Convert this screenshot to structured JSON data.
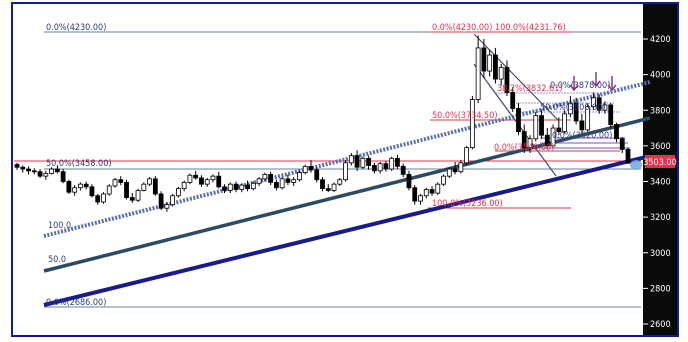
{
  "colors": {
    "frame": "#0e1f8f",
    "axis_bg": "#0a0a0a",
    "axis_text": "#ffffff",
    "fib_level": "#6a7f99",
    "fib_red": "#e8304a",
    "fib_violet": "#a78bdf",
    "fib_text_red": "#e8304a",
    "fib_text_blue": "#2d3c7a",
    "channel_mid": "#2c4a63",
    "channel_low": "#1a1a8a",
    "channel_high": "#5b6fb0",
    "candle_up": "#ffffff",
    "candle_down": "#000000",
    "price_marker": "#e8304a",
    "arrow": "#8a3a8a",
    "flag": "#4a4a6a"
  },
  "chart_data": {
    "type": "candlestick",
    "title": "",
    "xlabel": "",
    "ylabel": "",
    "ylim": [
      2570,
      4320
    ],
    "y_ticks": [
      2600,
      2800,
      3000,
      3200,
      3400,
      3600,
      3800,
      4000,
      4200
    ],
    "y_tick_labels": [
      "2600",
      "2800",
      "3000",
      "3200",
      "3400",
      "3600",
      "3800",
      "4000",
      "4200"
    ],
    "last_price": 3503.0,
    "last_price_label": "3503.00",
    "candles": [
      [
        3495,
        3505,
        3465,
        3480
      ],
      [
        3480,
        3490,
        3450,
        3470
      ],
      [
        3470,
        3485,
        3440,
        3460
      ],
      [
        3460,
        3475,
        3440,
        3455
      ],
      [
        3455,
        3470,
        3420,
        3430
      ],
      [
        3430,
        3460,
        3410,
        3445
      ],
      [
        3445,
        3480,
        3440,
        3470
      ],
      [
        3470,
        3490,
        3445,
        3455
      ],
      [
        3455,
        3470,
        3390,
        3400
      ],
      [
        3400,
        3410,
        3330,
        3340
      ],
      [
        3340,
        3380,
        3320,
        3365
      ],
      [
        3365,
        3395,
        3350,
        3385
      ],
      [
        3385,
        3400,
        3355,
        3370
      ],
      [
        3370,
        3385,
        3310,
        3320
      ],
      [
        3320,
        3330,
        3270,
        3285
      ],
      [
        3285,
        3340,
        3275,
        3330
      ],
      [
        3330,
        3385,
        3320,
        3375
      ],
      [
        3375,
        3420,
        3365,
        3410
      ],
      [
        3410,
        3430,
        3380,
        3395
      ],
      [
        3395,
        3410,
        3300,
        3310
      ],
      [
        3310,
        3335,
        3280,
        3295
      ],
      [
        3295,
        3360,
        3285,
        3350
      ],
      [
        3350,
        3395,
        3345,
        3385
      ],
      [
        3385,
        3425,
        3375,
        3415
      ],
      [
        3415,
        3430,
        3320,
        3330
      ],
      [
        3330,
        3345,
        3240,
        3250
      ],
      [
        3250,
        3285,
        3230,
        3270
      ],
      [
        3270,
        3330,
        3260,
        3320
      ],
      [
        3320,
        3370,
        3310,
        3360
      ],
      [
        3360,
        3405,
        3345,
        3395
      ],
      [
        3395,
        3445,
        3385,
        3435
      ],
      [
        3435,
        3460,
        3410,
        3420
      ],
      [
        3420,
        3435,
        3370,
        3385
      ],
      [
        3385,
        3420,
        3370,
        3410
      ],
      [
        3410,
        3440,
        3395,
        3430
      ],
      [
        3430,
        3455,
        3360,
        3370
      ],
      [
        3370,
        3385,
        3335,
        3350
      ],
      [
        3350,
        3395,
        3335,
        3385
      ],
      [
        3385,
        3400,
        3340,
        3355
      ],
      [
        3355,
        3390,
        3340,
        3380
      ],
      [
        3380,
        3405,
        3345,
        3360
      ],
      [
        3360,
        3400,
        3350,
        3390
      ],
      [
        3390,
        3425,
        3375,
        3415
      ],
      [
        3415,
        3450,
        3400,
        3440
      ],
      [
        3440,
        3455,
        3380,
        3395
      ],
      [
        3395,
        3410,
        3350,
        3365
      ],
      [
        3365,
        3425,
        3355,
        3415
      ],
      [
        3415,
        3440,
        3380,
        3395
      ],
      [
        3395,
        3425,
        3375,
        3410
      ],
      [
        3410,
        3460,
        3400,
        3450
      ],
      [
        3450,
        3495,
        3440,
        3485
      ],
      [
        3485,
        3520,
        3450,
        3465
      ],
      [
        3465,
        3480,
        3395,
        3410
      ],
      [
        3410,
        3425,
        3345,
        3360
      ],
      [
        3360,
        3385,
        3340,
        3350
      ],
      [
        3350,
        3395,
        3340,
        3385
      ],
      [
        3385,
        3420,
        3375,
        3410
      ],
      [
        3410,
        3520,
        3400,
        3505
      ],
      [
        3505,
        3560,
        3490,
        3545
      ],
      [
        3545,
        3575,
        3460,
        3480
      ],
      [
        3480,
        3540,
        3470,
        3530
      ],
      [
        3530,
        3545,
        3465,
        3490
      ],
      [
        3490,
        3505,
        3445,
        3460
      ],
      [
        3460,
        3510,
        3445,
        3500
      ],
      [
        3500,
        3515,
        3455,
        3470
      ],
      [
        3470,
        3540,
        3460,
        3530
      ],
      [
        3530,
        3550,
        3470,
        3485
      ],
      [
        3485,
        3500,
        3425,
        3440
      ],
      [
        3440,
        3460,
        3350,
        3365
      ],
      [
        3365,
        3380,
        3270,
        3290
      ],
      [
        3290,
        3330,
        3270,
        3320
      ],
      [
        3320,
        3365,
        3305,
        3355
      ],
      [
        3355,
        3375,
        3320,
        3335
      ],
      [
        3335,
        3395,
        3325,
        3385
      ],
      [
        3385,
        3440,
        3375,
        3430
      ],
      [
        3430,
        3480,
        3420,
        3470
      ],
      [
        3470,
        3510,
        3440,
        3455
      ],
      [
        3455,
        3520,
        3445,
        3505
      ],
      [
        3505,
        3600,
        3495,
        3590
      ],
      [
        3590,
        3880,
        3580,
        3860
      ],
      [
        3860,
        4220,
        3840,
        4150
      ],
      [
        4150,
        4200,
        3980,
        4020
      ],
      [
        4020,
        4140,
        3990,
        4110
      ],
      [
        4110,
        4150,
        3950,
        3975
      ],
      [
        3975,
        4060,
        3940,
        4040
      ],
      [
        4040,
        4080,
        3880,
        3900
      ],
      [
        3900,
        3930,
        3790,
        3810
      ],
      [
        3810,
        3840,
        3660,
        3680
      ],
      [
        3680,
        3720,
        3560,
        3590
      ],
      [
        3590,
        3660,
        3560,
        3640
      ],
      [
        3640,
        3790,
        3625,
        3770
      ],
      [
        3770,
        3800,
        3640,
        3660
      ],
      [
        3660,
        3700,
        3580,
        3600
      ],
      [
        3600,
        3720,
        3590,
        3700
      ],
      [
        3700,
        3760,
        3660,
        3680
      ],
      [
        3680,
        3800,
        3670,
        3780
      ],
      [
        3780,
        3880,
        3760,
        3840
      ],
      [
        3840,
        3870,
        3720,
        3740
      ],
      [
        3740,
        3780,
        3660,
        3690
      ],
      [
        3690,
        3840,
        3680,
        3820
      ],
      [
        3820,
        3900,
        3800,
        3870
      ],
      [
        3870,
        3890,
        3780,
        3800
      ],
      [
        3800,
        3850,
        3780,
        3830
      ],
      [
        3830,
        3840,
        3700,
        3720
      ],
      [
        3720,
        3730,
        3620,
        3640
      ],
      [
        3640,
        3650,
        3560,
        3580
      ],
      [
        3580,
        3590,
        3500,
        3503
      ]
    ]
  },
  "fib_labels": {
    "top_left": "0.0%(4230.00)",
    "top_red_left": "0.0%(4230.00)",
    "top_red_right": "100.0%(4231.76)",
    "mid_left": "50.0%(3458.00)",
    "mid_red": "50.0%(3734.50)",
    "low_red": "0.0%(3540.00)",
    "low_red2": "100.0%(3236.00)",
    "upper_right": "0.0%(3878.00)",
    "purple_mid": "50.0%(3800.00)",
    "purple_low": "0.0%(3620.00)",
    "inner_red": "38.2%(3832.61)",
    "left_50": "50.0",
    "left_100": "100.0",
    "bottom_left": "0.0%(2686.00)"
  }
}
